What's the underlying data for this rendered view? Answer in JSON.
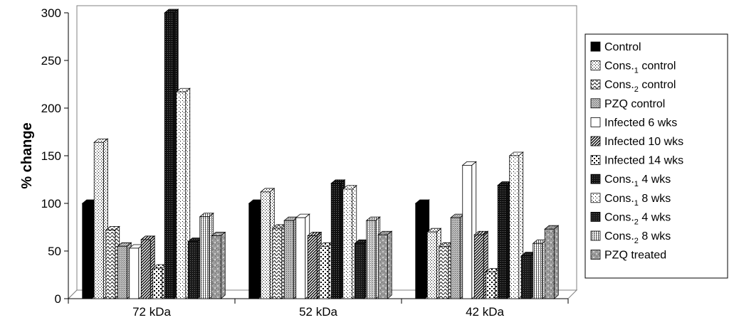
{
  "chart_data": {
    "type": "bar",
    "style": "3d-clustered",
    "ylabel": "% change",
    "xlabel": "",
    "ylim": [
      0,
      300
    ],
    "yticks": [
      0,
      50,
      100,
      150,
      200,
      250,
      300
    ],
    "categories": [
      "72 kDa",
      "52 kDa",
      "42 kDa"
    ],
    "legend_position": "right",
    "series": [
      {
        "name": "Control",
        "sub": "",
        "suffix": "",
        "pattern": "solid-black",
        "values": [
          100,
          100,
          100
        ]
      },
      {
        "name": "Cons.",
        "sub": "1",
        "suffix": " control",
        "pattern": "fine-dots",
        "values": [
          164,
          112,
          70
        ]
      },
      {
        "name": "Cons.",
        "sub": "2",
        "suffix": " control",
        "pattern": "wave",
        "values": [
          72,
          74,
          55
        ]
      },
      {
        "name": "PZQ control",
        "sub": "",
        "suffix": "",
        "pattern": "grid-gray",
        "values": [
          55,
          82,
          85
        ]
      },
      {
        "name": "Infected 6 wks",
        "sub": "",
        "suffix": "",
        "pattern": "white",
        "values": [
          53,
          85,
          140
        ]
      },
      {
        "name": "Infected 10 wks",
        "sub": "",
        "suffix": "",
        "pattern": "diagonal",
        "values": [
          62,
          66,
          67
        ]
      },
      {
        "name": "Infected 14 wks",
        "sub": "",
        "suffix": "",
        "pattern": "bricks",
        "values": [
          32,
          55,
          28
        ]
      },
      {
        "name": "Cons.",
        "sub": "1",
        "suffix": " 4 wks",
        "pattern": "dark-dots",
        "values": [
          300,
          121,
          119
        ]
      },
      {
        "name": "Cons.",
        "sub": "1",
        "suffix": " 8 wks",
        "pattern": "sparse-dots",
        "values": [
          217,
          115,
          150
        ]
      },
      {
        "name": "Cons.",
        "sub": "2",
        "suffix": " 4 wks",
        "pattern": "dark-grid",
        "values": [
          60,
          58,
          45
        ]
      },
      {
        "name": "Cons.",
        "sub": "2",
        "suffix": " 8 wks",
        "pattern": "vertical-lines",
        "values": [
          86,
          82,
          58
        ]
      },
      {
        "name": "PZQ treated",
        "sub": "",
        "suffix": "",
        "pattern": "mottled",
        "values": [
          66,
          67,
          73
        ]
      }
    ]
  }
}
